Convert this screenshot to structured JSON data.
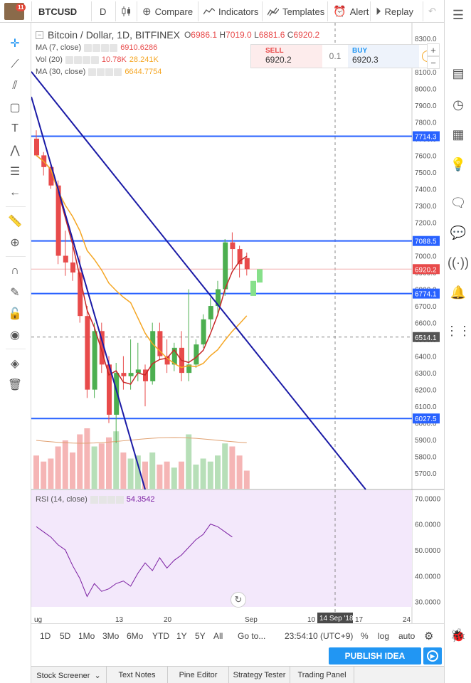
{
  "topbar": {
    "notification_count": "11",
    "symbol": "BTCUSD",
    "interval": "D",
    "compare_label": "Compare",
    "indicators_label": "Indicators",
    "templates_label": "Templates",
    "alert_label": "Alert",
    "replay_label": "Replay"
  },
  "chart": {
    "title": "Bitcoin / Dollar, 1D, BITFINEX",
    "ohlc": {
      "o_label": "O",
      "o": "6986.1",
      "h_label": "H",
      "h": "7019.0",
      "l_label": "L",
      "l": "6881.6",
      "c_label": "C",
      "c": "6920.2"
    },
    "indicators": [
      {
        "name": "MA (7, close)",
        "value": "6910.6286",
        "color": "#e84b4b"
      },
      {
        "name": "Vol (20)",
        "value": "10.78K",
        "value2": "28.241K",
        "color": "#e84b4b",
        "color2": "#f5a623"
      },
      {
        "name": "MA (30, close)",
        "value": "6644.7754",
        "color": "#f5a623"
      }
    ],
    "trade": {
      "sell_label": "SELL",
      "sell_price": "6920.2",
      "spread": "0.1",
      "buy_label": "BUY",
      "buy_price": "6920.3"
    },
    "price_axis": [
      "8300.0",
      "8200.0",
      "8100.0",
      "8000.0",
      "7900.0",
      "7800.0",
      "7700.0",
      "7600.0",
      "7500.0",
      "7400.0",
      "7300.0",
      "7200.0",
      "7100.0",
      "7000.0",
      "6900.0",
      "6800.0",
      "6700.0",
      "6600.0",
      "6500.0",
      "6400.0",
      "6300.0",
      "6200.0",
      "6100.0",
      "6000.0",
      "5900.0",
      "5800.0",
      "5700.0"
    ],
    "price_tags": [
      {
        "value": "7714.3",
        "color": "#2962ff"
      },
      {
        "value": "7088.5",
        "color": "#2962ff"
      },
      {
        "value": "6920.2",
        "color": "#e84b4b"
      },
      {
        "value": "6774.1",
        "color": "#2962ff"
      },
      {
        "value": "6514.1",
        "color": "#555555"
      },
      {
        "value": "6027.5",
        "color": "#2962ff"
      }
    ],
    "rsi": {
      "name": "RSI (14, close)",
      "value": "54.3542",
      "axis": [
        "70.0000",
        "60.0000",
        "50.0000",
        "40.0000",
        "30.0000"
      ]
    },
    "time_axis": [
      "ug",
      "13",
      "20",
      "Sep",
      "10",
      "17",
      "24"
    ],
    "crosshair_date": "14 Sep '18",
    "colors": {
      "up": "#4caf50",
      "down": "#e84b4b",
      "trend": "#1a1aa6",
      "hline": "#2962ff",
      "ma7": "#c62828",
      "ma30": "#f5a623",
      "rsi_bg": "#f3e8fb",
      "rsi_line": "#7b1fa2"
    }
  },
  "chart_data": {
    "type": "candlestick",
    "ylim": [
      5650,
      8350
    ],
    "candles": [
      {
        "o": 7700,
        "h": 7750,
        "l": 7600,
        "c": 7600
      },
      {
        "o": 7600,
        "h": 7620,
        "l": 7480,
        "c": 7530
      },
      {
        "o": 7530,
        "h": 7560,
        "l": 7400,
        "c": 7420
      },
      {
        "o": 7420,
        "h": 7450,
        "l": 6950,
        "c": 7000
      },
      {
        "o": 7000,
        "h": 7150,
        "l": 6880,
        "c": 6960
      },
      {
        "o": 6960,
        "h": 7100,
        "l": 6850,
        "c": 6900
      },
      {
        "o": 6900,
        "h": 7000,
        "l": 6600,
        "c": 6640
      },
      {
        "o": 6640,
        "h": 6700,
        "l": 6150,
        "c": 6200
      },
      {
        "o": 6200,
        "h": 6600,
        "l": 6150,
        "c": 6550
      },
      {
        "o": 6550,
        "h": 6600,
        "l": 6300,
        "c": 6350
      },
      {
        "o": 6350,
        "h": 6400,
        "l": 6000,
        "c": 6050
      },
      {
        "o": 6050,
        "h": 6360,
        "l": 5880,
        "c": 6300
      },
      {
        "o": 6300,
        "h": 6400,
        "l": 6200,
        "c": 6280
      },
      {
        "o": 6280,
        "h": 6500,
        "l": 6200,
        "c": 6300
      },
      {
        "o": 6300,
        "h": 6480,
        "l": 6250,
        "c": 6320
      },
      {
        "o": 6320,
        "h": 6350,
        "l": 6100,
        "c": 6250
      },
      {
        "o": 6250,
        "h": 6600,
        "l": 6230,
        "c": 6550
      },
      {
        "o": 6550,
        "h": 6600,
        "l": 6380,
        "c": 6400
      },
      {
        "o": 6400,
        "h": 6500,
        "l": 6300,
        "c": 6350
      },
      {
        "o": 6350,
        "h": 6480,
        "l": 6310,
        "c": 6450
      },
      {
        "o": 6450,
        "h": 6550,
        "l": 6250,
        "c": 6300
      },
      {
        "o": 6300,
        "h": 6800,
        "l": 6250,
        "c": 6350
      },
      {
        "o": 6350,
        "h": 6500,
        "l": 6330,
        "c": 6470
      },
      {
        "o": 6470,
        "h": 6650,
        "l": 6450,
        "c": 6620
      },
      {
        "o": 6620,
        "h": 6750,
        "l": 6560,
        "c": 6700
      },
      {
        "o": 6700,
        "h": 6850,
        "l": 6650,
        "c": 6800
      },
      {
        "o": 6800,
        "h": 7100,
        "l": 6760,
        "c": 7080
      },
      {
        "o": 7080,
        "h": 7140,
        "l": 6920,
        "c": 7040
      },
      {
        "o": 7040,
        "h": 7060,
        "l": 6870,
        "c": 6950
      },
      {
        "o": 6986,
        "h": 7019,
        "l": 6882,
        "c": 6920
      }
    ],
    "volume_note": "relative heights",
    "volume": [
      0.55,
      0.45,
      0.5,
      0.7,
      0.8,
      0.6,
      0.9,
      1.0,
      0.7,
      0.75,
      0.85,
      0.95,
      0.6,
      0.5,
      0.55,
      0.45,
      0.6,
      0.4,
      0.45,
      0.35,
      0.45,
      0.9,
      0.4,
      0.5,
      0.45,
      0.55,
      0.75,
      0.7,
      0.55,
      0.3
    ],
    "rsi_values": [
      59,
      57,
      55,
      52,
      50,
      44,
      39,
      32,
      37,
      34,
      35,
      37,
      38,
      36,
      41,
      45,
      42,
      47,
      43,
      46,
      48,
      51,
      54,
      56,
      60,
      59,
      57,
      55
    ],
    "rsi_ylim": [
      28,
      72
    ]
  }
}
